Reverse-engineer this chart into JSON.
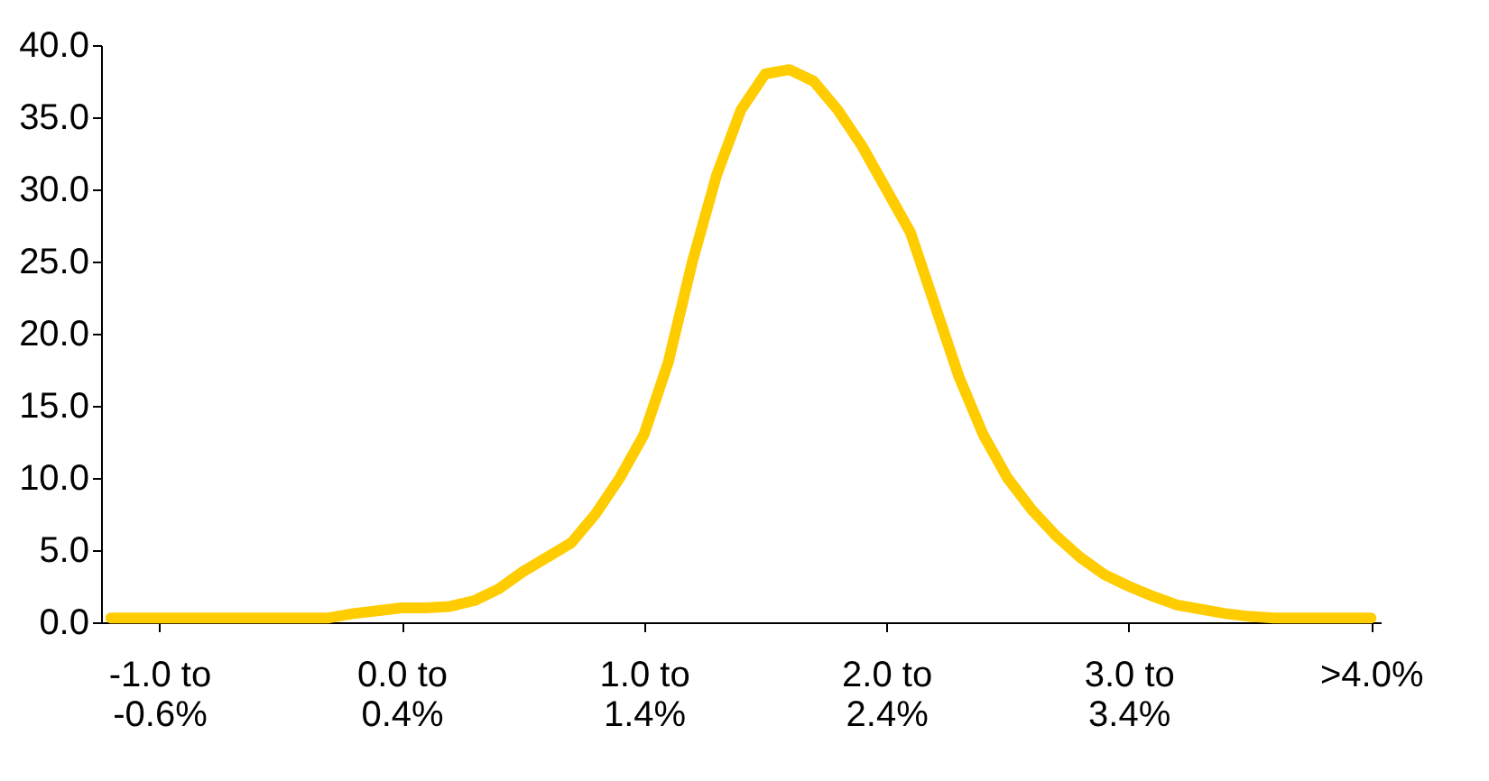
{
  "chart_data": {
    "type": "line",
    "color": "#ffcc00",
    "line_style": "solid",
    "marker": "none",
    "grid": false,
    "categories": [
      null,
      null,
      "-1.0 to -0.6%",
      null,
      null,
      null,
      null,
      null,
      null,
      null,
      null,
      null,
      "0.0 to 0.4%",
      null,
      null,
      null,
      null,
      null,
      null,
      null,
      null,
      null,
      "1.0 to 1.4%",
      null,
      null,
      null,
      null,
      null,
      null,
      null,
      null,
      null,
      "2.0 to 2.4%",
      null,
      null,
      null,
      null,
      null,
      null,
      null,
      null,
      null,
      "3.0 to 3.4%",
      null,
      null,
      null,
      null,
      null,
      null,
      null,
      null,
      null,
      ">4.0%"
    ],
    "values": [
      0.3,
      0.3,
      0.3,
      0.3,
      0.3,
      0.3,
      0.3,
      0.3,
      0.3,
      0.3,
      0.6,
      0.8,
      1.0,
      1.0,
      1.1,
      1.5,
      2.3,
      3.5,
      4.5,
      5.5,
      7.5,
      10.0,
      13.0,
      18.0,
      25.0,
      31.0,
      35.5,
      38.0,
      38.3,
      37.5,
      35.5,
      33.0,
      30.0,
      27.0,
      22.0,
      17.0,
      13.0,
      10.0,
      7.8,
      6.0,
      4.5,
      3.3,
      2.5,
      1.8,
      1.2,
      0.9,
      0.6,
      0.4,
      0.3,
      0.3,
      0.3,
      0.3,
      0.3
    ],
    "ylim": [
      0,
      40
    ],
    "yticks": [
      {
        "value": 0,
        "label": "0.0"
      },
      {
        "value": 5,
        "label": "5.0"
      },
      {
        "value": 10,
        "label": "10.0"
      },
      {
        "value": 15,
        "label": "15.0"
      },
      {
        "value": 20,
        "label": "20.0"
      },
      {
        "value": 25,
        "label": "25.0"
      },
      {
        "value": 30,
        "label": "30.0"
      },
      {
        "value": 35,
        "label": "35.0"
      },
      {
        "value": 40,
        "label": "40.0"
      }
    ]
  }
}
